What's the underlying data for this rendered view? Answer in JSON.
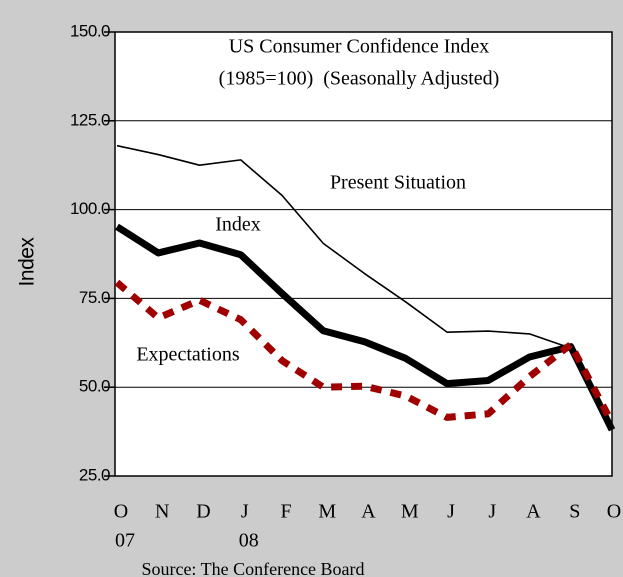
{
  "chart_data": {
    "type": "line",
    "title": "US Consumer Confidence Index",
    "subtitle": "(1985=100)  (Seasonally Adjusted)",
    "ylabel": "Index",
    "source": "Source: The Conference Board",
    "categories": [
      "O",
      "N",
      "D",
      "J",
      "F",
      "M",
      "A",
      "M",
      "J",
      "J",
      "A",
      "S",
      "O"
    ],
    "x_sublabels": [
      "07",
      null,
      null,
      "08",
      null,
      null,
      null,
      null,
      null,
      null,
      null,
      null,
      null
    ],
    "ylim": [
      25,
      150
    ],
    "yticks": [
      {
        "value": 25,
        "label": "25.0"
      },
      {
        "value": 50,
        "label": "50.0"
      },
      {
        "value": 75,
        "label": "75.0"
      },
      {
        "value": 100,
        "label": "100.0"
      },
      {
        "value": 125,
        "label": "125.0"
      },
      {
        "value": 150,
        "label": "150.0"
      }
    ],
    "grid": true,
    "series": [
      {
        "name": "Present Situation",
        "color": "#000000",
        "style": "thin",
        "values": [
          118,
          115.5,
          112.5,
          114,
          104,
          90.5,
          82,
          74,
          65.5,
          65.8,
          65,
          61,
          38
        ]
      },
      {
        "name": "Index",
        "color": "#000000",
        "style": "thick",
        "values": [
          95.2,
          87.8,
          90.6,
          87.3,
          76.4,
          65.9,
          62.8,
          58.1,
          51.0,
          51.9,
          58.5,
          61.4,
          38
        ]
      },
      {
        "name": "Expectations",
        "color": "#a00000",
        "style": "dashed",
        "values": [
          79.5,
          69.5,
          74.5,
          69,
          57.5,
          50,
          50.3,
          47.5,
          41.5,
          42.5,
          53,
          62,
          40
        ]
      }
    ]
  }
}
